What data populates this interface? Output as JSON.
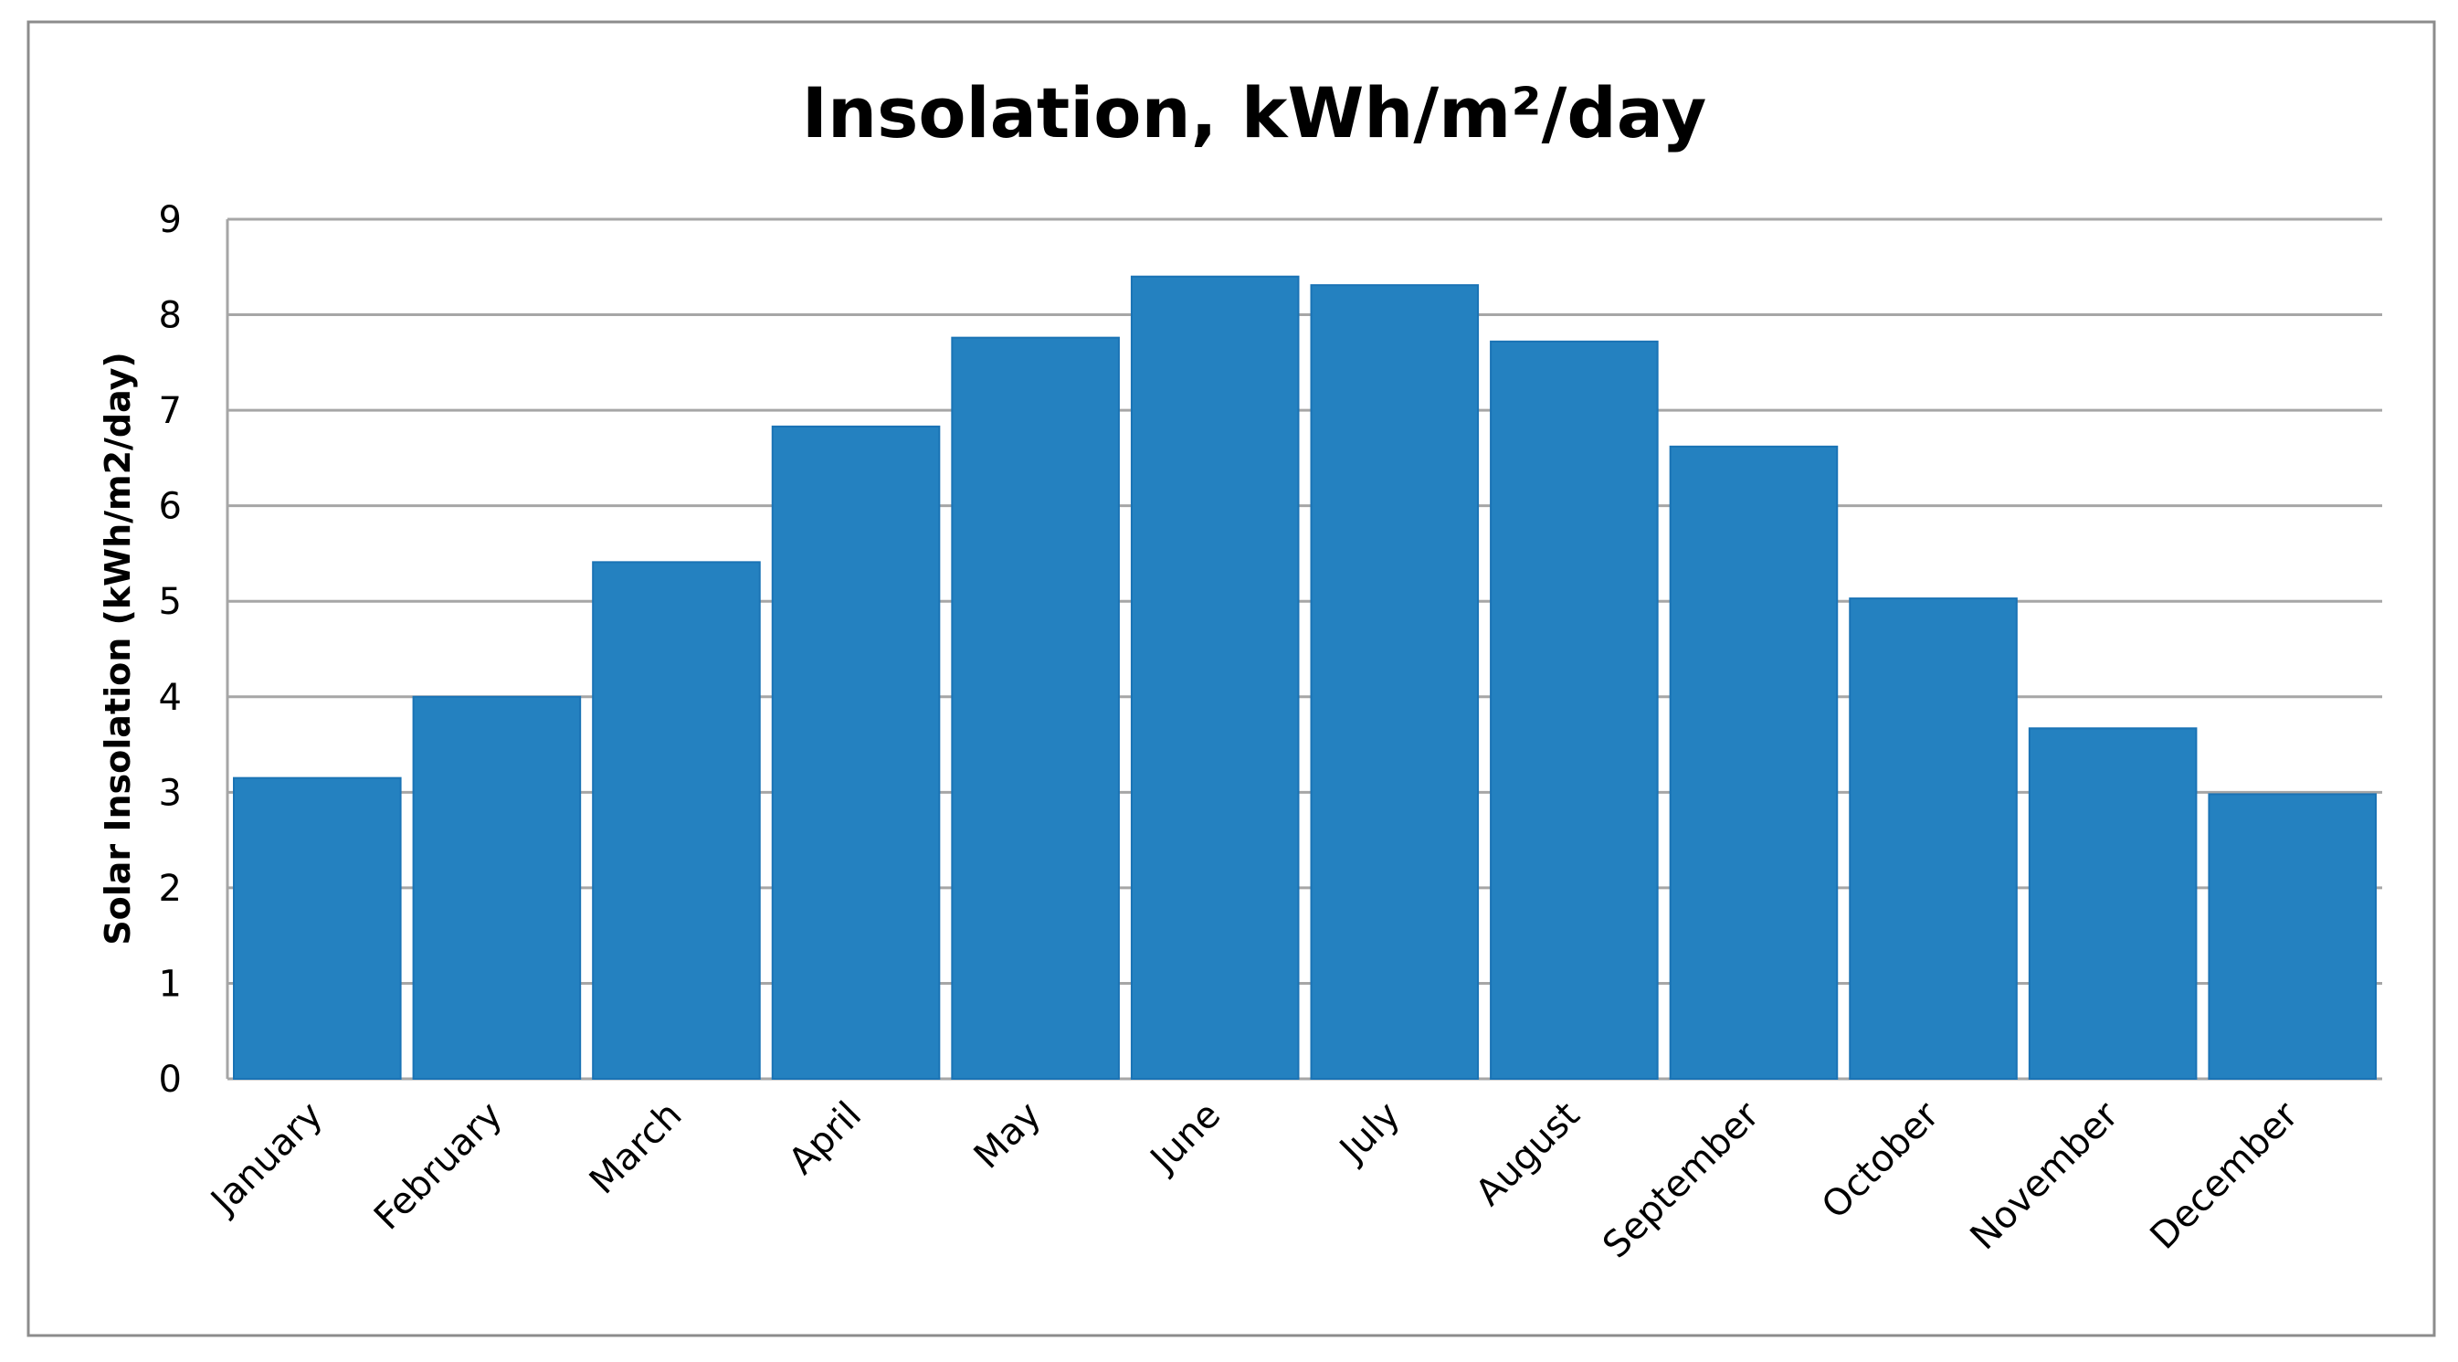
{
  "chart_data": {
    "type": "bar",
    "title": "Insolation, kWh/m²/day",
    "xlabel": "",
    "ylabel": "Solar Insolation (kWh/m2/day)",
    "categories": [
      "January",
      "February",
      "March",
      "April",
      "May",
      "June",
      "July",
      "August",
      "September",
      "October",
      "November",
      "December"
    ],
    "values": [
      3.15,
      4.0,
      5.41,
      6.83,
      7.76,
      8.4,
      8.31,
      7.72,
      6.62,
      5.03,
      3.67,
      2.98
    ],
    "ylim": [
      0,
      9
    ],
    "yticks": [
      "0",
      "1",
      "2",
      "3",
      "4",
      "5",
      "6",
      "7",
      "8",
      "9"
    ],
    "grid": true,
    "legend": "none",
    "colors": {
      "bar": "#2481c0",
      "grid": "#a6a6a6",
      "border": "#8c8c8c"
    }
  }
}
